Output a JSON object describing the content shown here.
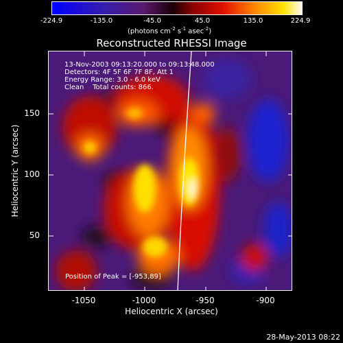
{
  "colorbar": {
    "ticks": [
      "-224.9",
      "-135.0",
      "-45.0",
      "45.0",
      "135.0",
      "224.9"
    ],
    "units_text": "(photons cm",
    "units_sup1": "-2",
    "units_mid": " s",
    "units_sup2": "-1",
    "units_end": " asec",
    "units_sup3": "-2",
    "units_close": ")"
  },
  "title": "Reconstructed RHESSI Image",
  "overlay": {
    "time_range": "13-Nov-2003 09:13:20.000 to 09:13:48.000",
    "detectors": "Detectors: 4F 5F 6F 7F 8F, Att 1",
    "energy": "Energy Range: 3.0 - 6.0 keV",
    "method": "Clean    Total counts: 866.",
    "peak": "Position of Peak = [-953,89]"
  },
  "axes": {
    "xlabel": "Heliocentric X (arcsec)",
    "ylabel": "Heliocentric Y (arcsec)",
    "xticks": [
      "-1050",
      "-1000",
      "-950",
      "-900"
    ],
    "yticks": [
      "150",
      "100",
      "50"
    ]
  },
  "timestamp": "28-May-2013 08:22"
}
